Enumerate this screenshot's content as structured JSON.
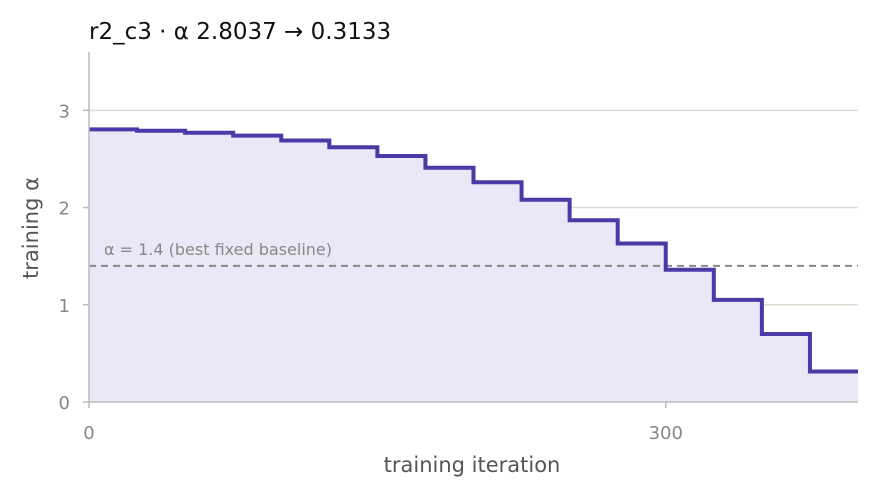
{
  "chart_data": {
    "type": "line",
    "title": "r2_c3   ·   α 2.8037 → 0.3133",
    "xlabel": "training iteration",
    "ylabel": "training α",
    "xlim": [
      0,
      400
    ],
    "ylim": [
      0,
      3.6
    ],
    "x_ticks": [
      0,
      300
    ],
    "y_ticks": [
      0,
      1,
      2,
      3
    ],
    "grid": "horizontal",
    "step": "post",
    "fill_under": true,
    "colors": {
      "line": "#4a3aa8",
      "fill": "#eae8f6",
      "baseline": "#888888",
      "grid": "#dcdcd2"
    },
    "series": [
      {
        "x": [
          0,
          25,
          50,
          75,
          100,
          125,
          150,
          175,
          200,
          225,
          250,
          275,
          300,
          325,
          350,
          375,
          400
        ],
        "y": [
          2.8037,
          2.79,
          2.77,
          2.74,
          2.69,
          2.62,
          2.53,
          2.41,
          2.26,
          2.08,
          1.87,
          1.63,
          1.36,
          1.05,
          0.7,
          0.3133,
          0.3133
        ]
      }
    ],
    "reference_line": {
      "y": 1.4,
      "label": "α = 1.4 (best fixed baseline)"
    }
  }
}
